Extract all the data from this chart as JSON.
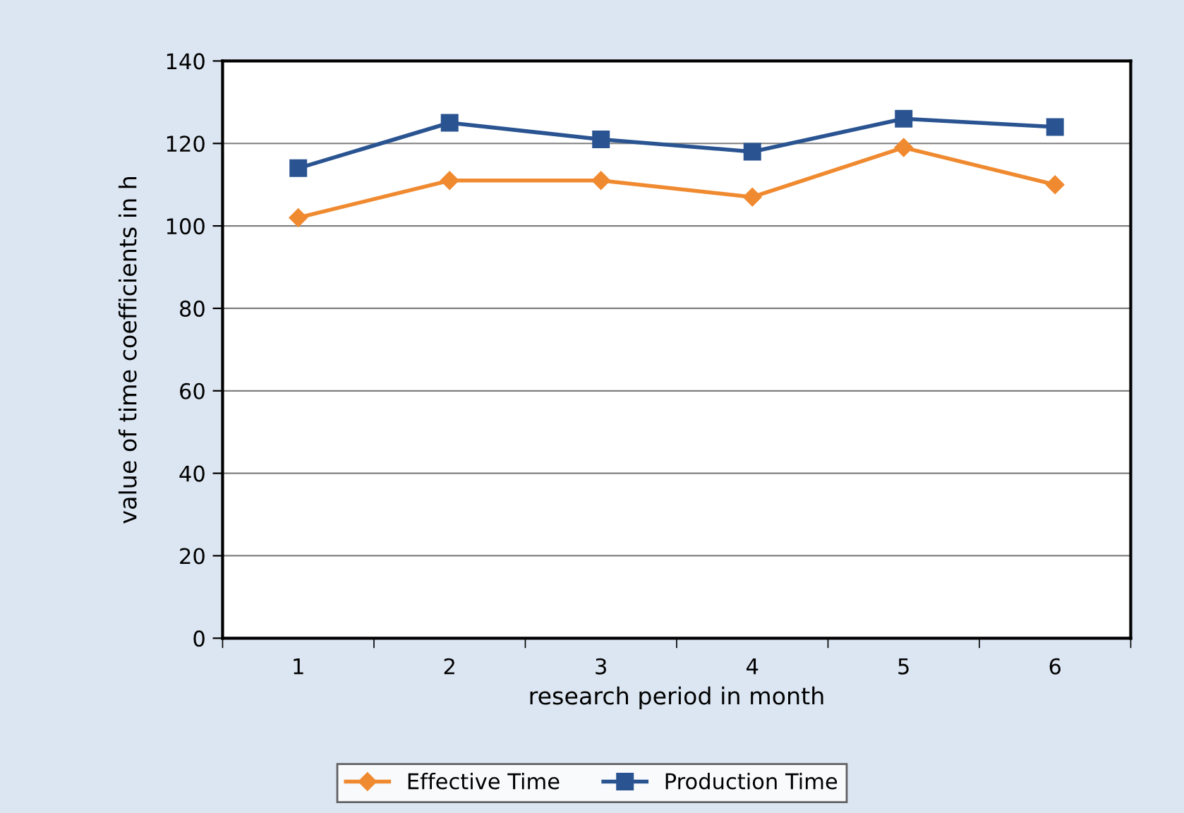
{
  "chart_data": {
    "type": "line",
    "xlabel": "research period in month",
    "ylabel": "value of time coefficients in h",
    "categories": [
      "1",
      "2",
      "3",
      "4",
      "5",
      "6"
    ],
    "series": [
      {
        "name": "Effective Time",
        "color": "#f08a30",
        "marker": "diamond",
        "values": [
          102,
          111,
          111,
          107,
          119,
          110
        ]
      },
      {
        "name": "Production Time",
        "color": "#2a5491",
        "marker": "square",
        "values": [
          114,
          125,
          121,
          118,
          126,
          124
        ]
      }
    ],
    "ylim": [
      0,
      140
    ],
    "yticks": [
      0,
      20,
      40,
      60,
      80,
      100,
      120,
      140
    ],
    "grid": "y",
    "legend": "bottom",
    "line_style": "solid"
  }
}
